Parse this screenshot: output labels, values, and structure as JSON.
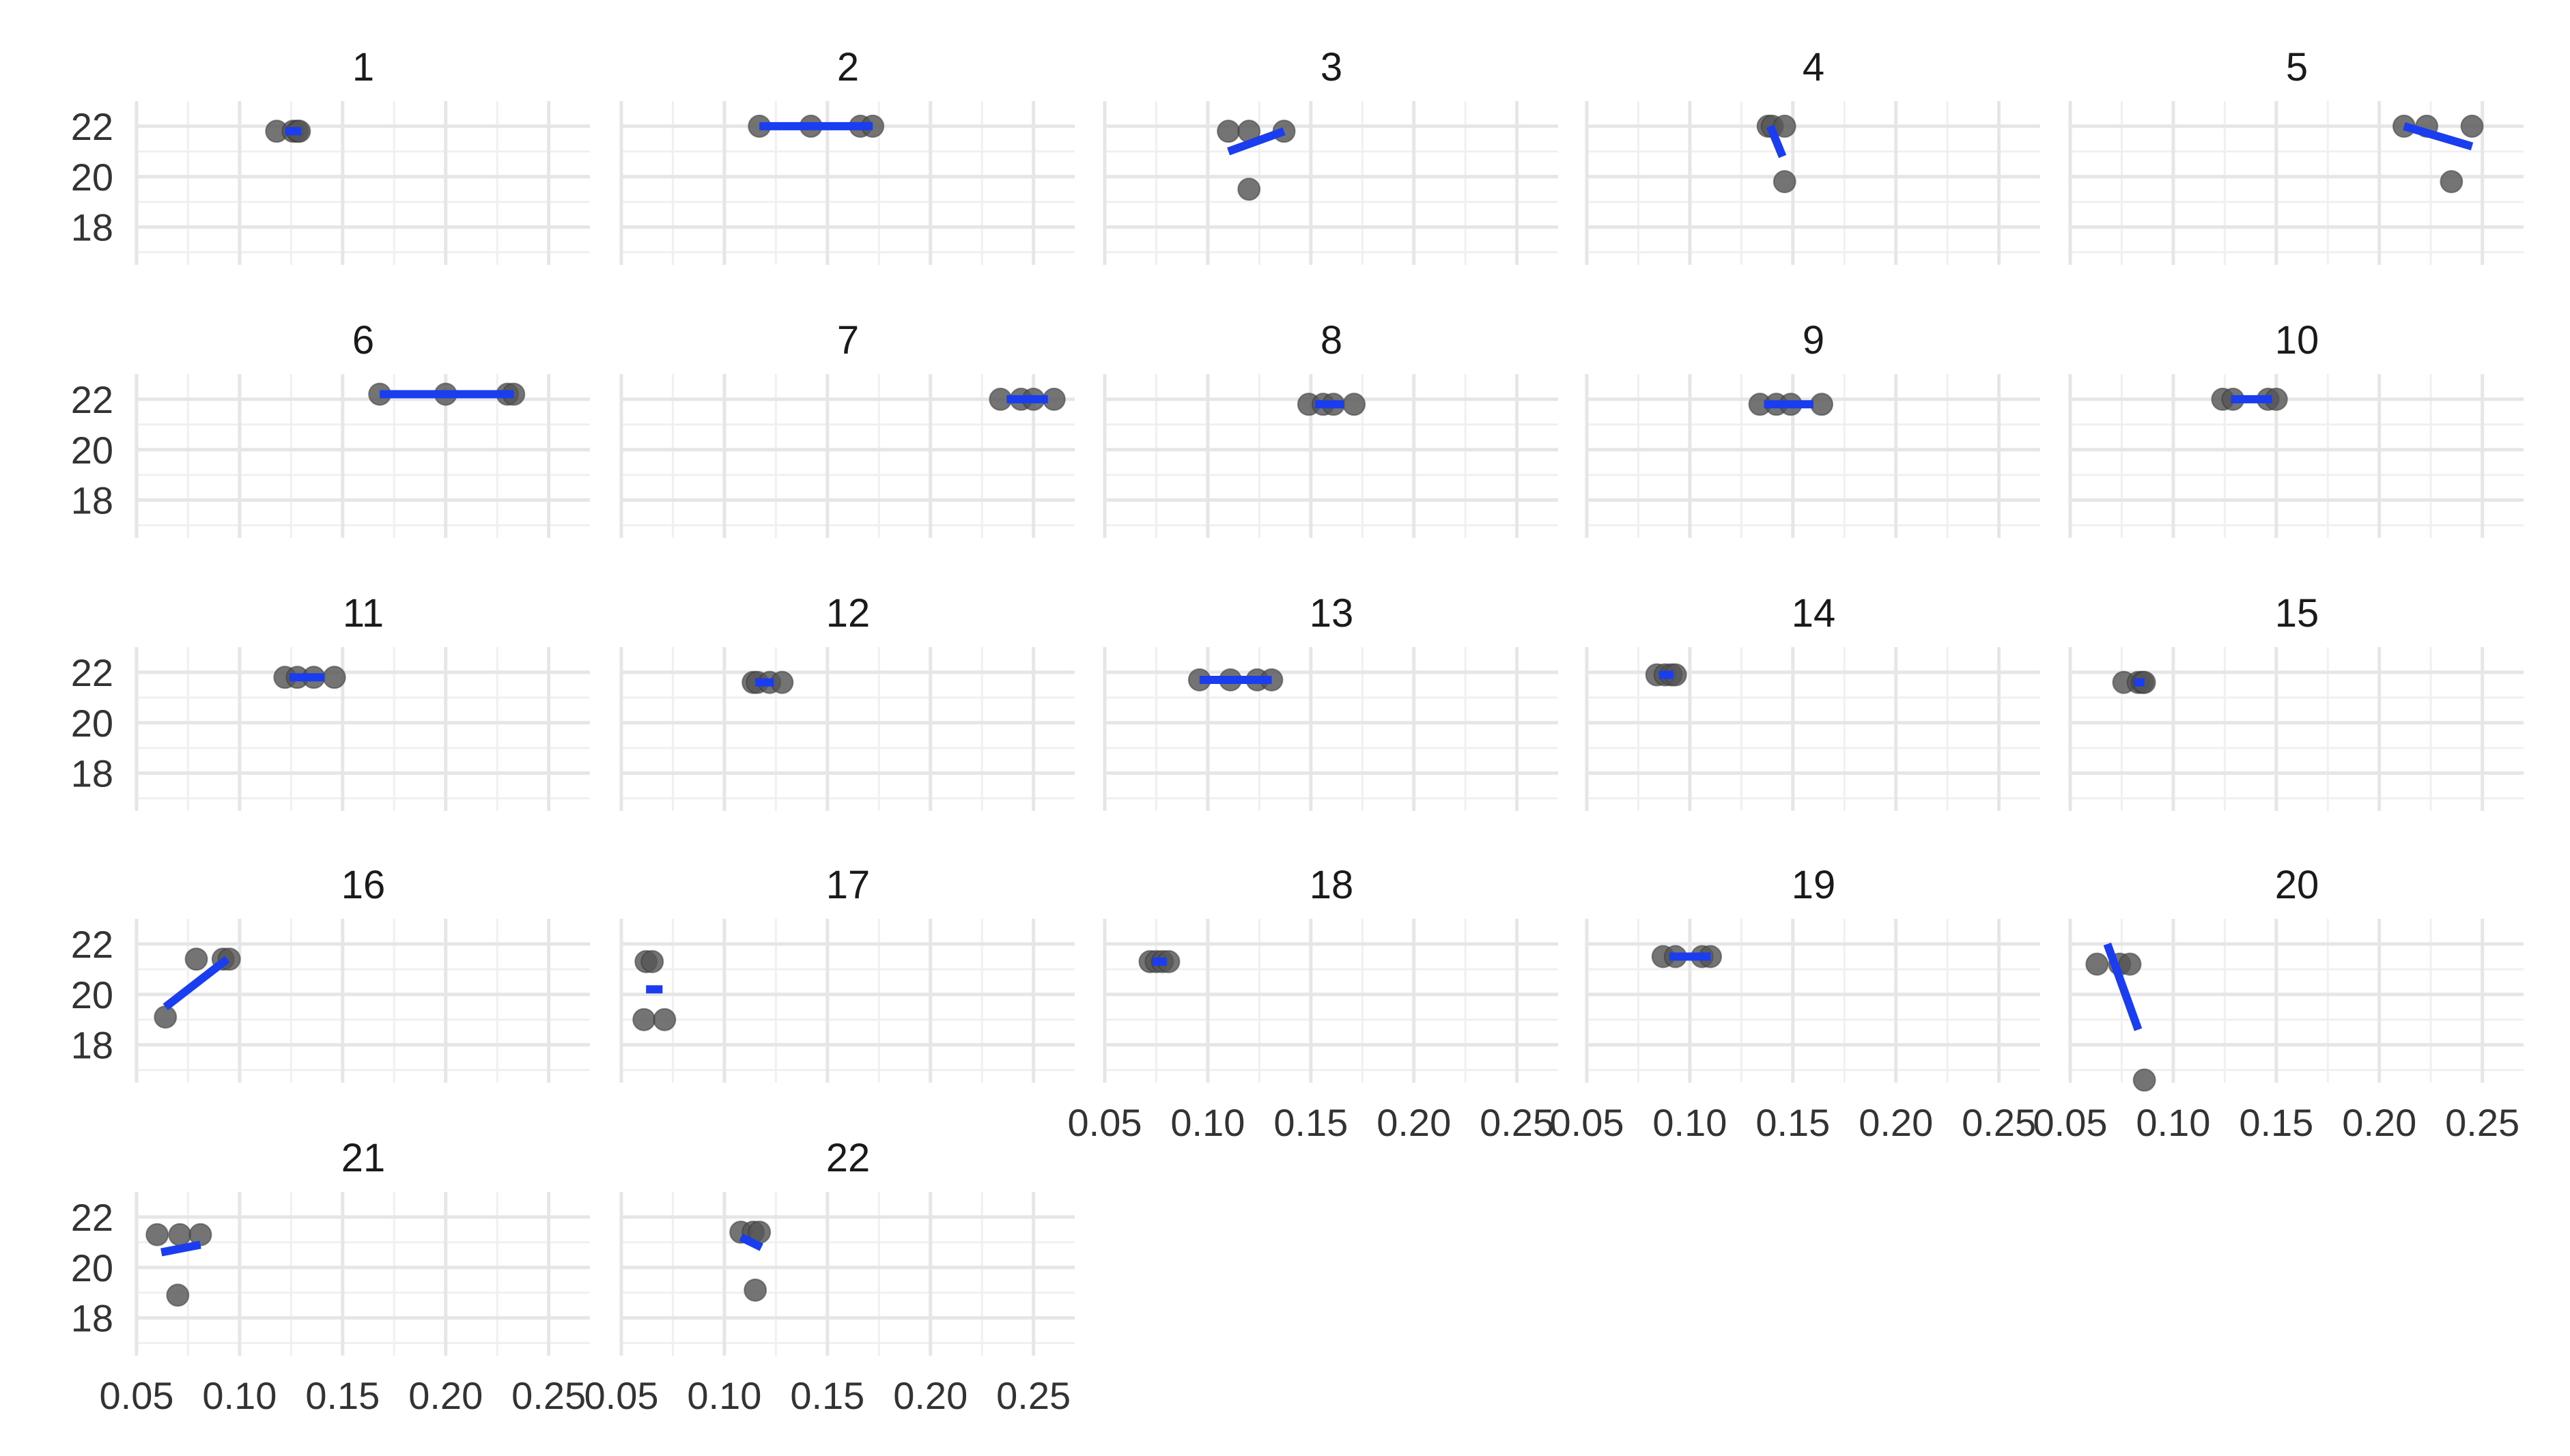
{
  "chart_data": {
    "type": "scatter",
    "layout": "facet-grid",
    "xlim": [
      0.05,
      0.27
    ],
    "ylim": [
      16.5,
      23.0
    ],
    "x_ticks": [
      "0.05",
      "0.10",
      "0.15",
      "0.20",
      "0.25"
    ],
    "y_ticks": [
      "22",
      "20",
      "18"
    ],
    "point_color": "#555555",
    "line_color": "#1a3df0",
    "grid_color": "#ebebeb",
    "panels": [
      {
        "label": "1",
        "points": [
          [
            0.118,
            21.8
          ],
          [
            0.126,
            21.8
          ],
          [
            0.128,
            21.8
          ],
          [
            0.129,
            21.8
          ]
        ],
        "fit": [
          [
            0.122,
            21.8
          ],
          [
            0.13,
            21.8
          ]
        ]
      },
      {
        "label": "2",
        "points": [
          [
            0.117,
            22.0
          ],
          [
            0.142,
            22.0
          ],
          [
            0.166,
            22.0
          ],
          [
            0.172,
            22.0
          ]
        ],
        "fit": [
          [
            0.117,
            22.0
          ],
          [
            0.172,
            22.0
          ]
        ]
      },
      {
        "label": "3",
        "points": [
          [
            0.11,
            21.8
          ],
          [
            0.12,
            21.8
          ],
          [
            0.12,
            19.5
          ],
          [
            0.137,
            21.8
          ]
        ],
        "fit": [
          [
            0.11,
            21.0
          ],
          [
            0.137,
            21.8
          ]
        ]
      },
      {
        "label": "4",
        "points": [
          [
            0.138,
            22.0
          ],
          [
            0.14,
            22.0
          ],
          [
            0.146,
            22.0
          ],
          [
            0.146,
            19.8
          ]
        ],
        "fit": [
          [
            0.139,
            22.0
          ],
          [
            0.145,
            20.8
          ]
        ]
      },
      {
        "label": "5",
        "points": [
          [
            0.212,
            22.0
          ],
          [
            0.223,
            22.0
          ],
          [
            0.235,
            19.8
          ],
          [
            0.245,
            22.0
          ]
        ],
        "fit": [
          [
            0.212,
            22.0
          ],
          [
            0.245,
            21.2
          ]
        ]
      },
      {
        "label": "6",
        "points": [
          [
            0.168,
            22.2
          ],
          [
            0.2,
            22.2
          ],
          [
            0.23,
            22.2
          ],
          [
            0.233,
            22.2
          ]
        ],
        "fit": [
          [
            0.168,
            22.2
          ],
          [
            0.233,
            22.2
          ]
        ]
      },
      {
        "label": "7",
        "points": [
          [
            0.234,
            22.0
          ],
          [
            0.244,
            22.0
          ],
          [
            0.25,
            22.0
          ],
          [
            0.26,
            22.0
          ]
        ],
        "fit": [
          [
            0.237,
            22.0
          ],
          [
            0.257,
            22.0
          ]
        ]
      },
      {
        "label": "8",
        "points": [
          [
            0.149,
            21.8
          ],
          [
            0.156,
            21.8
          ],
          [
            0.161,
            21.8
          ],
          [
            0.171,
            21.8
          ]
        ],
        "fit": [
          [
            0.152,
            21.8
          ],
          [
            0.166,
            21.8
          ]
        ]
      },
      {
        "label": "9",
        "points": [
          [
            0.134,
            21.8
          ],
          [
            0.142,
            21.8
          ],
          [
            0.149,
            21.8
          ],
          [
            0.164,
            21.8
          ]
        ],
        "fit": [
          [
            0.136,
            21.8
          ],
          [
            0.16,
            21.8
          ]
        ]
      },
      {
        "label": "10",
        "points": [
          [
            0.124,
            22.0
          ],
          [
            0.129,
            22.0
          ],
          [
            0.146,
            22.0
          ],
          [
            0.15,
            22.0
          ]
        ],
        "fit": [
          [
            0.128,
            22.0
          ],
          [
            0.148,
            22.0
          ]
        ]
      },
      {
        "label": "11",
        "points": [
          [
            0.122,
            21.8
          ],
          [
            0.128,
            21.8
          ],
          [
            0.136,
            21.8
          ],
          [
            0.146,
            21.8
          ]
        ],
        "fit": [
          [
            0.124,
            21.8
          ],
          [
            0.141,
            21.8
          ]
        ]
      },
      {
        "label": "12",
        "points": [
          [
            0.114,
            21.6
          ],
          [
            0.116,
            21.6
          ],
          [
            0.122,
            21.6
          ],
          [
            0.128,
            21.6
          ]
        ],
        "fit": [
          [
            0.115,
            21.6
          ],
          [
            0.124,
            21.6
          ]
        ]
      },
      {
        "label": "13",
        "points": [
          [
            0.096,
            21.7
          ],
          [
            0.111,
            21.7
          ],
          [
            0.124,
            21.7
          ],
          [
            0.131,
            21.7
          ]
        ],
        "fit": [
          [
            0.096,
            21.7
          ],
          [
            0.131,
            21.7
          ]
        ]
      },
      {
        "label": "14",
        "points": [
          [
            0.084,
            21.9
          ],
          [
            0.088,
            21.9
          ],
          [
            0.091,
            21.9
          ],
          [
            0.093,
            21.9
          ]
        ],
        "fit": [
          [
            0.085,
            21.9
          ],
          [
            0.092,
            21.9
          ]
        ]
      },
      {
        "label": "15",
        "points": [
          [
            0.076,
            21.6
          ],
          [
            0.083,
            21.6
          ],
          [
            0.085,
            21.6
          ],
          [
            0.086,
            21.6
          ]
        ],
        "fit": [
          [
            0.081,
            21.6
          ],
          [
            0.086,
            21.6
          ]
        ]
      },
      {
        "label": "16",
        "points": [
          [
            0.064,
            19.1
          ],
          [
            0.079,
            21.4
          ],
          [
            0.092,
            21.4
          ],
          [
            0.095,
            21.4
          ]
        ],
        "fit": [
          [
            0.064,
            19.5
          ],
          [
            0.094,
            21.4
          ]
        ]
      },
      {
        "label": "17",
        "points": [
          [
            0.062,
            21.3
          ],
          [
            0.065,
            21.3
          ],
          [
            0.061,
            19.0
          ],
          [
            0.071,
            19.0
          ]
        ],
        "fit": [
          [
            0.062,
            20.2
          ],
          [
            0.07,
            20.2
          ]
        ]
      },
      {
        "label": "18",
        "points": [
          [
            0.072,
            21.3
          ],
          [
            0.075,
            21.3
          ],
          [
            0.078,
            21.3
          ],
          [
            0.081,
            21.3
          ]
        ],
        "fit": [
          [
            0.073,
            21.3
          ],
          [
            0.08,
            21.3
          ]
        ]
      },
      {
        "label": "19",
        "points": [
          [
            0.087,
            21.5
          ],
          [
            0.093,
            21.5
          ],
          [
            0.106,
            21.5
          ],
          [
            0.11,
            21.5
          ]
        ],
        "fit": [
          [
            0.09,
            21.5
          ],
          [
            0.11,
            21.5
          ]
        ]
      },
      {
        "label": "20",
        "points": [
          [
            0.063,
            21.2
          ],
          [
            0.074,
            21.2
          ],
          [
            0.079,
            21.2
          ],
          [
            0.086,
            16.6
          ]
        ],
        "fit": [
          [
            0.068,
            22.0
          ],
          [
            0.083,
            18.6
          ]
        ]
      },
      {
        "label": "21",
        "points": [
          [
            0.06,
            21.3
          ],
          [
            0.071,
            21.3
          ],
          [
            0.081,
            21.3
          ],
          [
            0.07,
            18.9
          ]
        ],
        "fit": [
          [
            0.062,
            20.6
          ],
          [
            0.081,
            20.9
          ]
        ]
      },
      {
        "label": "22",
        "points": [
          [
            0.108,
            21.4
          ],
          [
            0.114,
            21.4
          ],
          [
            0.117,
            21.4
          ],
          [
            0.115,
            19.1
          ]
        ],
        "fit": [
          [
            0.108,
            21.2
          ],
          [
            0.118,
            20.8
          ]
        ]
      }
    ]
  }
}
